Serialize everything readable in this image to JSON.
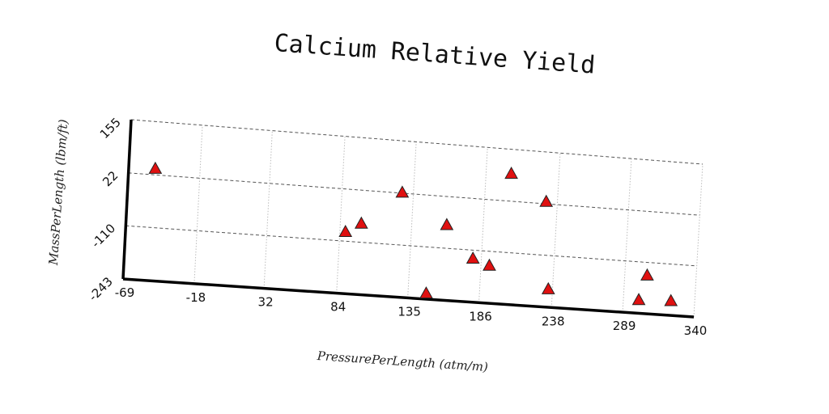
{
  "chart_data": {
    "type": "scatter",
    "title": "Calcium Relative Yield",
    "xlabel": "PressurePerLength (atm/m)",
    "ylabel": "MassPerLength (lbm/ft)",
    "xlim": [
      -69,
      340
    ],
    "ylim": [
      -243,
      155
    ],
    "xticks": [
      -69,
      -18,
      32,
      84,
      135,
      186,
      238,
      289,
      340
    ],
    "yticks": [
      -243,
      -110,
      22,
      155
    ],
    "grid": true,
    "marker": "triangle",
    "marker_color": "#e01010",
    "points": [
      {
        "x": -50,
        "y": 38
      },
      {
        "x": 88,
        "y": -86
      },
      {
        "x": 99,
        "y": -62
      },
      {
        "x": 127,
        "y": 24
      },
      {
        "x": 148,
        "y": -228
      },
      {
        "x": 160,
        "y": -50
      },
      {
        "x": 180,
        "y": -131
      },
      {
        "x": 192,
        "y": -146
      },
      {
        "x": 204,
        "y": 93
      },
      {
        "x": 230,
        "y": 28
      },
      {
        "x": 235,
        "y": -196
      },
      {
        "x": 305,
        "y": -143
      },
      {
        "x": 300,
        "y": -208
      },
      {
        "x": 323,
        "y": -205
      }
    ]
  }
}
